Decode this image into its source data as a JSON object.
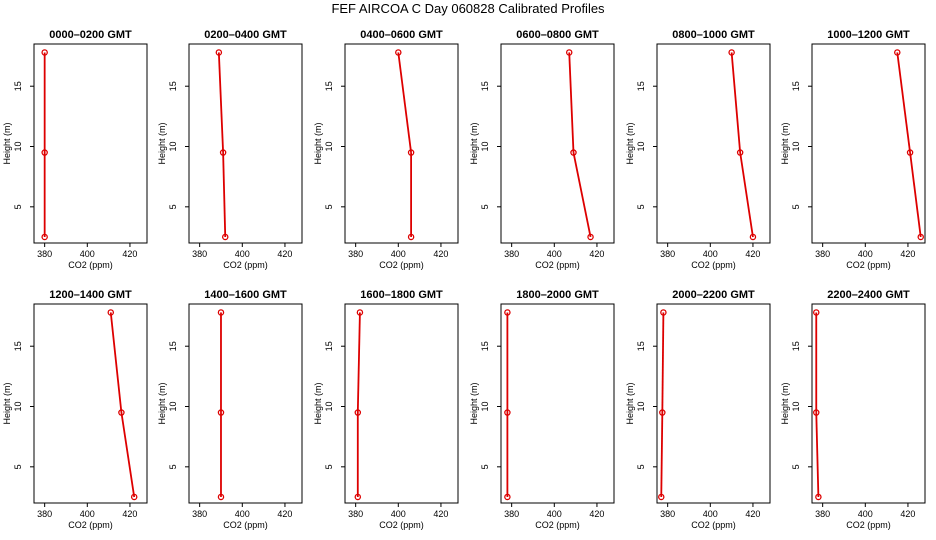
{
  "figure": {
    "title": "FEF AIRCOA C  Day 060828  Calibrated Profiles"
  },
  "colors": {
    "series": "#dd0000",
    "axes": "#000000"
  },
  "chart_data": [
    {
      "type": "line",
      "title": "0000–0200 GMT",
      "xlabel": "CO2 (ppm)",
      "ylabel": "Height (m)",
      "xlim": [
        375,
        428
      ],
      "ylim": [
        2,
        18.5
      ],
      "xticks": [
        380,
        400,
        420
      ],
      "yticks": [
        5,
        10,
        15
      ],
      "x": [
        380,
        380,
        380
      ],
      "y": [
        2.5,
        9.5,
        17.8
      ]
    },
    {
      "type": "line",
      "title": "0200–0400 GMT",
      "xlabel": "CO2 (ppm)",
      "ylabel": "Height (m)",
      "xlim": [
        375,
        428
      ],
      "ylim": [
        2,
        18.5
      ],
      "xticks": [
        380,
        400,
        420
      ],
      "yticks": [
        5,
        10,
        15
      ],
      "x": [
        392,
        391,
        389
      ],
      "y": [
        2.5,
        9.5,
        17.8
      ]
    },
    {
      "type": "line",
      "title": "0400–0600 GMT",
      "xlabel": "CO2 (ppm)",
      "ylabel": "Height (m)",
      "xlim": [
        375,
        428
      ],
      "ylim": [
        2,
        18.5
      ],
      "xticks": [
        380,
        400,
        420
      ],
      "yticks": [
        5,
        10,
        15
      ],
      "x": [
        406,
        406,
        400
      ],
      "y": [
        2.5,
        9.5,
        17.8
      ]
    },
    {
      "type": "line",
      "title": "0600–0800 GMT",
      "xlabel": "CO2 (ppm)",
      "ylabel": "Height (m)",
      "xlim": [
        375,
        428
      ],
      "ylim": [
        2,
        18.5
      ],
      "xticks": [
        380,
        400,
        420
      ],
      "yticks": [
        5,
        10,
        15
      ],
      "x": [
        417,
        409,
        407
      ],
      "y": [
        2.5,
        9.5,
        17.8
      ]
    },
    {
      "type": "line",
      "title": "0800–1000 GMT",
      "xlabel": "CO2 (ppm)",
      "ylabel": "Height (m)",
      "xlim": [
        375,
        428
      ],
      "ylim": [
        2,
        18.5
      ],
      "xticks": [
        380,
        400,
        420
      ],
      "yticks": [
        5,
        10,
        15
      ],
      "x": [
        420,
        414,
        410
      ],
      "y": [
        2.5,
        9.5,
        17.8
      ]
    },
    {
      "type": "line",
      "title": "1000–1200 GMT",
      "xlabel": "CO2 (ppm)",
      "ylabel": "Height (m)",
      "xlim": [
        375,
        428
      ],
      "ylim": [
        2,
        18.5
      ],
      "xticks": [
        380,
        400,
        420
      ],
      "yticks": [
        5,
        10,
        15
      ],
      "x": [
        426,
        421,
        415
      ],
      "y": [
        2.5,
        9.5,
        17.8
      ]
    },
    {
      "type": "line",
      "title": "1200–1400 GMT",
      "xlabel": "CO2 (ppm)",
      "ylabel": "Height (m)",
      "xlim": [
        375,
        428
      ],
      "ylim": [
        2,
        18.5
      ],
      "xticks": [
        380,
        400,
        420
      ],
      "yticks": [
        5,
        10,
        15
      ],
      "x": [
        422,
        416,
        411
      ],
      "y": [
        2.5,
        9.5,
        17.8
      ]
    },
    {
      "type": "line",
      "title": "1400–1600 GMT",
      "xlabel": "CO2 (ppm)",
      "ylabel": "Height (m)",
      "xlim": [
        375,
        428
      ],
      "ylim": [
        2,
        18.5
      ],
      "xticks": [
        380,
        400,
        420
      ],
      "yticks": [
        5,
        10,
        15
      ],
      "x": [
        390,
        390,
        390
      ],
      "y": [
        2.5,
        9.5,
        17.8
      ]
    },
    {
      "type": "line",
      "title": "1600–1800 GMT",
      "xlabel": "CO2 (ppm)",
      "ylabel": "Height (m)",
      "xlim": [
        375,
        428
      ],
      "ylim": [
        2,
        18.5
      ],
      "xticks": [
        380,
        400,
        420
      ],
      "yticks": [
        5,
        10,
        15
      ],
      "x": [
        381,
        381,
        382
      ],
      "y": [
        2.5,
        9.5,
        17.8
      ]
    },
    {
      "type": "line",
      "title": "1800–2000 GMT",
      "xlabel": "CO2 (ppm)",
      "ylabel": "Height (m)",
      "xlim": [
        375,
        428
      ],
      "ylim": [
        2,
        18.5
      ],
      "xticks": [
        380,
        400,
        420
      ],
      "yticks": [
        5,
        10,
        15
      ],
      "x": [
        378,
        378,
        378
      ],
      "y": [
        2.5,
        9.5,
        17.8
      ]
    },
    {
      "type": "line",
      "title": "2000–2200 GMT",
      "xlabel": "CO2 (ppm)",
      "ylabel": "Height (m)",
      "xlim": [
        375,
        428
      ],
      "ylim": [
        2,
        18.5
      ],
      "xticks": [
        380,
        400,
        420
      ],
      "yticks": [
        5,
        10,
        15
      ],
      "x": [
        377,
        377.5,
        378
      ],
      "y": [
        2.5,
        9.5,
        17.8
      ]
    },
    {
      "type": "line",
      "title": "2200–2400 GMT",
      "xlabel": "CO2 (ppm)",
      "ylabel": "Height (m)",
      "xlim": [
        375,
        428
      ],
      "ylim": [
        2,
        18.5
      ],
      "xticks": [
        380,
        400,
        420
      ],
      "yticks": [
        5,
        10,
        15
      ],
      "x": [
        378,
        377,
        377
      ],
      "y": [
        2.5,
        9.5,
        17.8
      ]
    }
  ]
}
